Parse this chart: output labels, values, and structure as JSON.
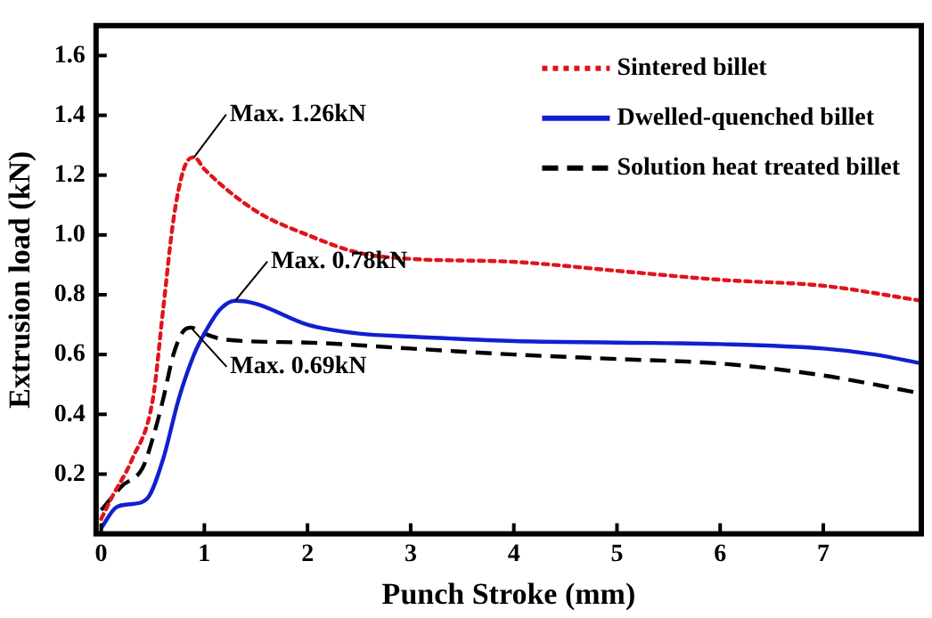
{
  "chart_data": {
    "type": "line",
    "xlabel": "Punch Stroke (mm)",
    "ylabel": "Extrusion load (kN)",
    "xlim": [
      -0.05,
      7.95
    ],
    "xticks": [
      0,
      1,
      2,
      3,
      4,
      5,
      6,
      7
    ],
    "ylim": [
      0,
      1.7
    ],
    "yticks": [
      {
        "value": 0.2,
        "label": "0.2"
      },
      {
        "value": 0.4,
        "label": "0.4"
      },
      {
        "value": 0.6,
        "label": "0.6"
      },
      {
        "value": 0.8,
        "label": "0.8"
      },
      {
        "value": 1.0,
        "label": "1.0"
      },
      {
        "value": 1.2,
        "label": "1.2"
      },
      {
        "value": 1.4,
        "label": "1.4"
      },
      {
        "value": 1.6,
        "label": "1.6"
      }
    ],
    "grid": false,
    "legend": "top right",
    "marker": "none",
    "series": [
      {
        "name": "Sintered billet",
        "color": "#e0141c",
        "line_style": "dotted",
        "x": [
          0,
          0.1,
          0.3,
          0.5,
          0.6,
          0.7,
          0.8,
          0.9,
          1.0,
          1.5,
          2,
          2.5,
          3,
          4,
          5,
          6,
          7,
          7.95
        ],
        "values": [
          0.05,
          0.12,
          0.25,
          0.45,
          0.75,
          1.05,
          1.22,
          1.26,
          1.22,
          1.08,
          1.0,
          0.94,
          0.92,
          0.91,
          0.88,
          0.85,
          0.83,
          0.78
        ]
      },
      {
        "name": "Dwelled-quenched billet",
        "color": "#1020d0",
        "line_style": "solid",
        "x": [
          0,
          0.15,
          0.3,
          0.45,
          0.6,
          0.75,
          0.9,
          1.0,
          1.15,
          1.3,
          1.5,
          2,
          2.5,
          3,
          4,
          5,
          6,
          7,
          7.5,
          7.95
        ],
        "values": [
          0.02,
          0.09,
          0.1,
          0.12,
          0.25,
          0.45,
          0.6,
          0.67,
          0.75,
          0.78,
          0.77,
          0.7,
          0.67,
          0.66,
          0.645,
          0.64,
          0.635,
          0.62,
          0.6,
          0.57
        ]
      },
      {
        "name": "Solution heat treated billet",
        "color": "#000000",
        "line_style": "dashed",
        "x": [
          0,
          0.2,
          0.4,
          0.5,
          0.6,
          0.7,
          0.8,
          0.87,
          1.0,
          1.2,
          2,
          3,
          4,
          5,
          6,
          7,
          7.95
        ],
        "values": [
          0.08,
          0.16,
          0.22,
          0.32,
          0.45,
          0.6,
          0.68,
          0.69,
          0.67,
          0.65,
          0.64,
          0.62,
          0.6,
          0.585,
          0.57,
          0.53,
          0.47
        ]
      }
    ],
    "annotations": [
      {
        "text": "Max. 1.26kN",
        "x": 0.9,
        "y": 1.26
      },
      {
        "text": "Max. 0.78kN",
        "x": 1.3,
        "y": 0.78
      },
      {
        "text": "Max. 0.69kN",
        "x": 0.87,
        "y": 0.69
      }
    ]
  }
}
